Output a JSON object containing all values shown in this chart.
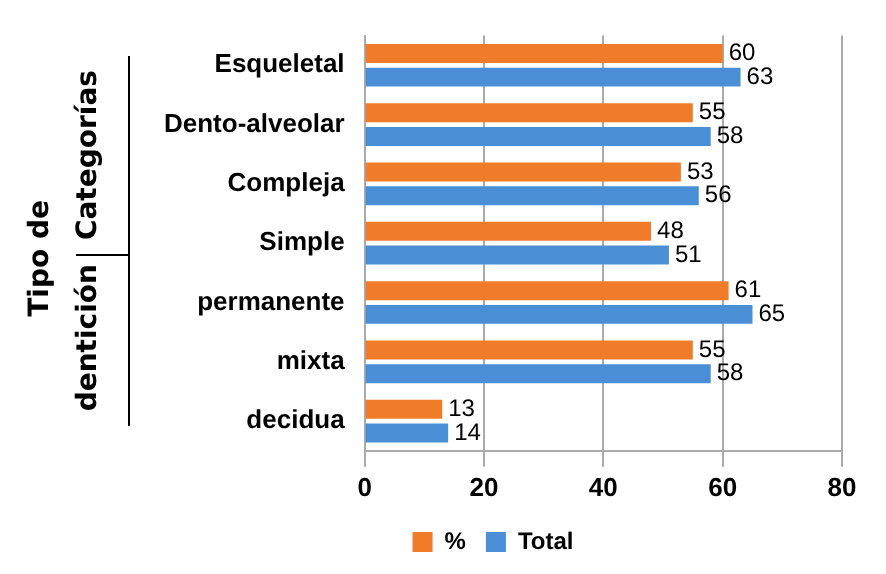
{
  "chart_data": {
    "type": "bar",
    "orientation": "horizontal",
    "categories": [
      "Esqueletal",
      "Dento-alveolar",
      "Compleja",
      "Simple",
      "permanente",
      "mixta",
      "decidua"
    ],
    "series": [
      {
        "name": "%",
        "color": "#f07c2a",
        "values": [
          60,
          55,
          53,
          48,
          61,
          55,
          13
        ]
      },
      {
        "name": "Total",
        "color": "#4a8fd6",
        "values": [
          63,
          58,
          56,
          51,
          65,
          58,
          14
        ]
      }
    ],
    "xlim": [
      0,
      80
    ],
    "xticks": [
      0,
      20,
      40,
      60,
      80
    ],
    "grid": "x",
    "legend": "bottom",
    "data_labels": true,
    "annotations": [
      "Tipo de",
      "Categorías",
      "dentición"
    ]
  }
}
